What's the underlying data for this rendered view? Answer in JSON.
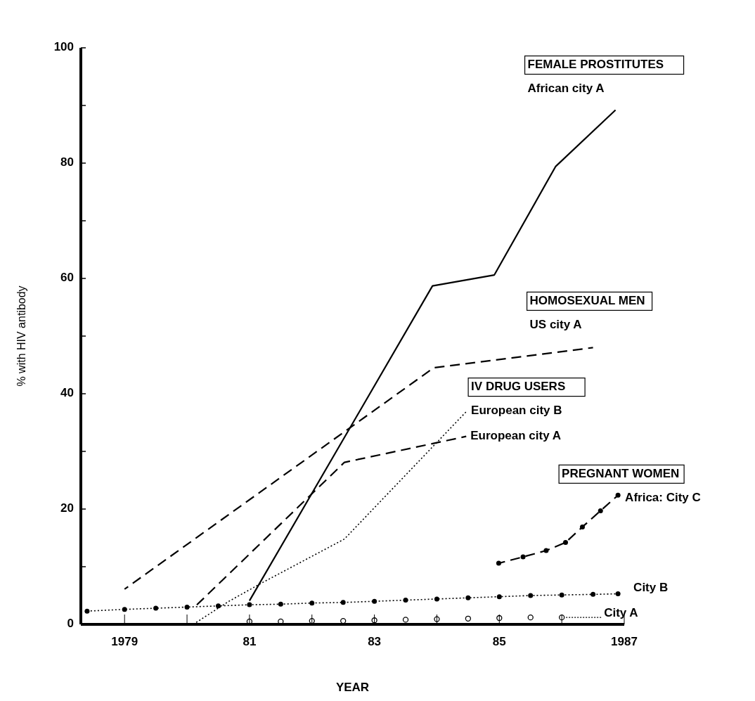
{
  "chart_data": {
    "type": "line",
    "xlabel": "YEAR",
    "ylabel": "% with HIV antibody",
    "xlim": [
      1978.3,
      1987
    ],
    "xticks": [
      {
        "value": 1979,
        "label": "1979"
      },
      {
        "value": 1980,
        "label": null
      },
      {
        "value": 1981,
        "label": "81"
      },
      {
        "value": 1982,
        "label": null
      },
      {
        "value": 1983,
        "label": "83"
      },
      {
        "value": 1984,
        "label": null
      },
      {
        "value": 1985,
        "label": "85"
      },
      {
        "value": 1986,
        "label": null
      },
      {
        "value": 1987,
        "label": "1987"
      }
    ],
    "ylim": [
      0,
      100
    ],
    "yticks": [
      0,
      {
        "value": 10,
        "label": null
      },
      20,
      {
        "value": 30,
        "label": null
      },
      40,
      {
        "value": 50,
        "label": null
      },
      60,
      {
        "value": 70,
        "label": null
      },
      80,
      {
        "value": 90,
        "label": null
      },
      100
    ],
    "grid": false,
    "series": [
      {
        "name": "African city A",
        "color": "#000000",
        "line_style": "solid",
        "marker": "none",
        "x": [
          1981.0,
          1983.93,
          1984.92,
          1985.9,
          1986.86
        ],
        "values": [
          4.1,
          58.7,
          60.6,
          79.4,
          89.2
        ]
      },
      {
        "name": "US city A",
        "color": "#000000",
        "line_style": "dashed",
        "marker": "none",
        "x": [
          1979.0,
          1983.95,
          1986.5
        ],
        "values": [
          6.1,
          44.5,
          48
        ]
      },
      {
        "name": "European city B",
        "color": "#000000",
        "line_style": "dotted",
        "marker": "none",
        "x": [
          1980.1,
          1980.67,
          1981.2,
          1982.52,
          1984.48
        ],
        "values": [
          0,
          4,
          7.2,
          14.8,
          37
        ]
      },
      {
        "name": "European city A",
        "color": "#000000",
        "line_style": "dashed",
        "marker": "none",
        "x": [
          1980.15,
          1982.52,
          1984.47
        ],
        "values": [
          3.3,
          28.1,
          32.6
        ]
      },
      {
        "name": "Africa: City C",
        "color": "#000000",
        "line_style": "dashed",
        "marker": "circle",
        "x": [
          1984.99,
          1985.38,
          1985.75,
          1986.06,
          1986.33,
          1986.62,
          1986.9
        ],
        "values": [
          10.6,
          11.7,
          12.8,
          14.2,
          16.9,
          19.7,
          22.4
        ]
      },
      {
        "name": "City B",
        "color": "#000000",
        "line_style": "dotted",
        "marker": "circle",
        "x": [
          1978.4,
          1979,
          1979.5,
          1980,
          1980.5,
          1981,
          1981.5,
          1982,
          1982.5,
          1983,
          1983.5,
          1984,
          1984.5,
          1985,
          1985.5,
          1986,
          1986.5,
          1986.9
        ],
        "values": [
          2.3,
          2.6,
          2.8,
          3.0,
          3.2,
          3.4,
          3.5,
          3.7,
          3.8,
          4.0,
          4.2,
          4.4,
          4.6,
          4.8,
          5.0,
          5.1,
          5.2,
          5.3
        ]
      },
      {
        "name": "City A",
        "type": "scatter",
        "color": "#000000",
        "marker": "circle",
        "x": [
          1981,
          1981.5,
          1982,
          1982.5,
          1983,
          1983.5,
          1984,
          1984.5,
          1985,
          1985.5,
          1986
        ],
        "values": [
          0.5,
          0.5,
          0.6,
          0.6,
          0.7,
          0.8,
          0.9,
          1.0,
          1.1,
          1.2,
          1.2
        ]
      }
    ],
    "annotations": [
      "FEMALE PROSTITUTES",
      "HOMOSEXUAL MEN",
      "IV DRUG USERS",
      "PREGNANT WOMEN"
    ]
  }
}
